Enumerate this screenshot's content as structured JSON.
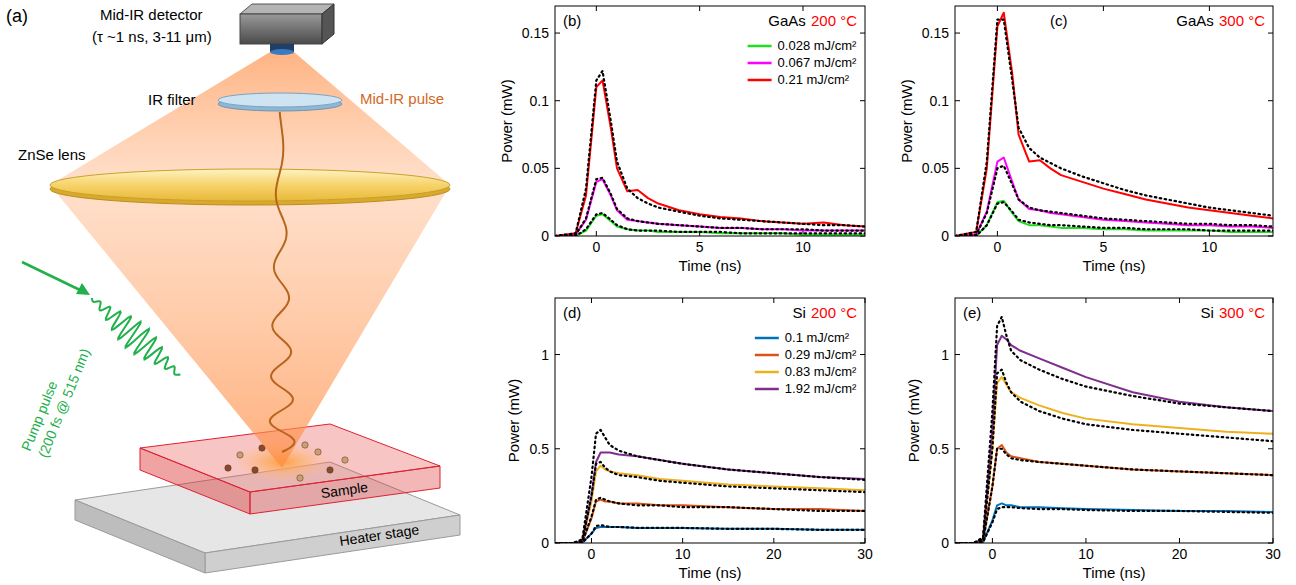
{
  "diagram": {
    "panel_label": "(a)",
    "detector": {
      "label": "Mid-IR detector",
      "spec": "(τ ~1 ns, 3-11 μm)"
    },
    "filter": {
      "label": "IR filter"
    },
    "beam": {
      "label": "Mid-IR pulse"
    },
    "lens": {
      "label": "ZnSe lens"
    },
    "pump": {
      "label": "Pump pulse",
      "spec": "(200 fs @ 515 nm)"
    },
    "sample": {
      "label": "Sample"
    },
    "stage": {
      "label": "Heater stage"
    }
  },
  "chart_data": [
    {
      "type": "line",
      "panel_label": "(b)",
      "title": "GaAs",
      "subtitle": "200 °C",
      "xlabel": "Time (ns)",
      "ylabel": "Power (mW)",
      "xlim": [
        -2,
        13
      ],
      "xticks": [
        0,
        5,
        10
      ],
      "ylim": [
        0,
        0.17
      ],
      "yticks": [
        0,
        0.05,
        0.1,
        0.15
      ],
      "legend": "upper right",
      "x": [
        -2,
        -1,
        -0.5,
        0,
        0.3,
        0.7,
        1,
        1.5,
        2,
        2.5,
        3,
        4,
        5,
        6,
        7,
        8,
        9,
        10,
        11,
        12,
        13
      ],
      "series": [
        {
          "name": "0.028 mJ/cm²",
          "color": "#1fe01f",
          "line_style": "solid",
          "values": [
            0,
            0,
            0.004,
            0.015,
            0.016,
            0.011,
            0.007,
            0.005,
            0.004,
            0.004,
            0.003,
            0.003,
            0.003,
            0.002,
            0.002,
            0.002,
            0.002,
            0.001,
            0.001,
            0.001,
            0.001
          ]
        },
        {
          "name": "0.067 mJ/cm²",
          "color": "#ff00ff",
          "line_style": "solid",
          "values": [
            0,
            0.001,
            0.012,
            0.04,
            0.042,
            0.03,
            0.019,
            0.012,
            0.011,
            0.01,
            0.009,
            0.008,
            0.007,
            0.006,
            0.006,
            0.005,
            0.005,
            0.004,
            0.004,
            0.004,
            0.004
          ]
        },
        {
          "name": "0.21 mJ/cm²",
          "color": "#ff0000",
          "line_style": "solid",
          "values": [
            0,
            0.002,
            0.03,
            0.11,
            0.115,
            0.08,
            0.05,
            0.033,
            0.034,
            0.028,
            0.024,
            0.019,
            0.016,
            0.014,
            0.013,
            0.011,
            0.01,
            0.009,
            0.01,
            0.008,
            0.007
          ]
        },
        {
          "color": "#000000",
          "line_style": "dotted",
          "values": [
            0,
            0,
            0.005,
            0.016,
            0.017,
            0.012,
            0.008,
            0.005,
            0.004,
            0.004,
            0.004,
            0.003,
            0.003,
            0.003,
            0.002,
            0.002,
            0.002,
            0.002,
            0.002,
            0.002,
            0.002
          ]
        },
        {
          "color": "#000000",
          "line_style": "dotted",
          "values": [
            0,
            0.001,
            0.013,
            0.042,
            0.043,
            0.031,
            0.02,
            0.013,
            0.011,
            0.01,
            0.009,
            0.008,
            0.007,
            0.006,
            0.006,
            0.005,
            0.005,
            0.005,
            0.004,
            0.004,
            0.004
          ]
        },
        {
          "color": "#000000",
          "line_style": "dotted",
          "values": [
            0,
            0.002,
            0.035,
            0.115,
            0.122,
            0.085,
            0.055,
            0.035,
            0.028,
            0.024,
            0.021,
            0.018,
            0.015,
            0.013,
            0.012,
            0.011,
            0.01,
            0.009,
            0.008,
            0.008,
            0.007
          ]
        }
      ]
    },
    {
      "type": "line",
      "panel_label": "(c)",
      "title": "GaAs",
      "subtitle": "300 °C",
      "xlabel": "Time (ns)",
      "ylabel": "Power (mW)",
      "xlim": [
        -2,
        13
      ],
      "xticks": [
        0,
        5,
        10
      ],
      "ylim": [
        0,
        0.17
      ],
      "yticks": [
        0,
        0.05,
        0.1,
        0.15
      ],
      "x": [
        -2,
        -1,
        -0.5,
        0,
        0.3,
        0.7,
        1,
        1.5,
        2,
        2.5,
        3,
        4,
        5,
        6,
        7,
        8,
        9,
        10,
        11,
        12,
        13
      ],
      "series": [
        {
          "color": "#1fe01f",
          "line_style": "solid",
          "values": [
            0,
            0,
            0.008,
            0.025,
            0.026,
            0.017,
            0.011,
            0.008,
            0.008,
            0.007,
            0.006,
            0.006,
            0.005,
            0.005,
            0.004,
            0.004,
            0.004,
            0.004,
            0.003,
            0.003,
            0.003
          ]
        },
        {
          "color": "#ff00ff",
          "line_style": "solid",
          "values": [
            0,
            0.001,
            0.018,
            0.055,
            0.058,
            0.04,
            0.027,
            0.02,
            0.019,
            0.017,
            0.016,
            0.014,
            0.012,
            0.011,
            0.01,
            0.009,
            0.008,
            0.008,
            0.007,
            0.007,
            0.006
          ]
        },
        {
          "color": "#ff0000",
          "line_style": "solid",
          "values": [
            0,
            0.003,
            0.05,
            0.155,
            0.165,
            0.12,
            0.075,
            0.055,
            0.056,
            0.05,
            0.045,
            0.04,
            0.035,
            0.031,
            0.027,
            0.024,
            0.021,
            0.019,
            0.017,
            0.015,
            0.013
          ]
        },
        {
          "color": "#000000",
          "line_style": "dotted",
          "values": [
            0,
            0,
            0.008,
            0.024,
            0.025,
            0.018,
            0.012,
            0.01,
            0.009,
            0.008,
            0.008,
            0.007,
            0.006,
            0.006,
            0.005,
            0.005,
            0.005,
            0.004,
            0.004,
            0.004,
            0.004
          ]
        },
        {
          "color": "#000000",
          "line_style": "dotted",
          "values": [
            0,
            0.001,
            0.017,
            0.05,
            0.052,
            0.038,
            0.027,
            0.021,
            0.019,
            0.018,
            0.017,
            0.015,
            0.013,
            0.012,
            0.011,
            0.01,
            0.009,
            0.009,
            0.008,
            0.008,
            0.007
          ]
        },
        {
          "color": "#000000",
          "line_style": "dotted",
          "values": [
            0,
            0.003,
            0.055,
            0.16,
            0.16,
            0.115,
            0.08,
            0.065,
            0.058,
            0.054,
            0.05,
            0.044,
            0.039,
            0.034,
            0.03,
            0.027,
            0.024,
            0.021,
            0.019,
            0.017,
            0.015
          ]
        }
      ]
    },
    {
      "type": "line",
      "panel_label": "(d)",
      "title": "Si",
      "subtitle": "200 °C",
      "xlabel": "Time (ns)",
      "ylabel": "Power (mW)",
      "xlim": [
        -4,
        30
      ],
      "xticks": [
        0,
        10,
        20,
        30
      ],
      "ylim": [
        0,
        1.3
      ],
      "yticks": [
        0,
        0.5,
        1
      ],
      "legend": "upper right",
      "x": [
        -4,
        -2,
        -1,
        0,
        0.5,
        1,
        1.5,
        2,
        3,
        5,
        7.5,
        10,
        15,
        20,
        25,
        30
      ],
      "series": [
        {
          "name": "0.1 mJ/cm²",
          "color": "#0072bd",
          "line_style": "solid",
          "values": [
            0,
            0,
            0.002,
            0.05,
            0.08,
            0.085,
            0.085,
            0.085,
            0.085,
            0.08,
            0.08,
            0.08,
            0.075,
            0.075,
            0.07,
            0.07
          ]
        },
        {
          "name": "0.29 mJ/cm²",
          "color": "#d95319",
          "line_style": "solid",
          "values": [
            0,
            0,
            0.005,
            0.13,
            0.22,
            0.23,
            0.22,
            0.22,
            0.21,
            0.21,
            0.2,
            0.2,
            0.19,
            0.18,
            0.18,
            0.17
          ]
        },
        {
          "name": "0.83 mJ/cm²",
          "color": "#edb120",
          "line_style": "solid",
          "values": [
            0,
            0,
            0.01,
            0.22,
            0.38,
            0.41,
            0.39,
            0.38,
            0.37,
            0.36,
            0.34,
            0.33,
            0.31,
            0.3,
            0.29,
            0.28
          ]
        },
        {
          "name": "1.92 mJ/cm²",
          "color": "#7e2f8e",
          "line_style": "solid",
          "values": [
            0,
            0,
            0.01,
            0.25,
            0.43,
            0.48,
            0.48,
            0.48,
            0.47,
            0.46,
            0.44,
            0.42,
            0.39,
            0.37,
            0.35,
            0.34
          ]
        },
        {
          "color": "#000000",
          "line_style": "dotted",
          "values": [
            0,
            0,
            0.002,
            0.05,
            0.09,
            0.095,
            0.09,
            0.085,
            0.085,
            0.08,
            0.08,
            0.08,
            0.075,
            0.075,
            0.07,
            0.07
          ]
        },
        {
          "color": "#000000",
          "line_style": "dotted",
          "values": [
            0,
            0,
            0.005,
            0.14,
            0.23,
            0.24,
            0.23,
            0.22,
            0.21,
            0.2,
            0.2,
            0.19,
            0.19,
            0.18,
            0.17,
            0.17
          ]
        },
        {
          "color": "#000000",
          "line_style": "dotted",
          "values": [
            0,
            0,
            0.01,
            0.25,
            0.42,
            0.43,
            0.4,
            0.38,
            0.36,
            0.35,
            0.33,
            0.32,
            0.3,
            0.29,
            0.28,
            0.27
          ]
        },
        {
          "color": "#000000",
          "line_style": "dotted",
          "values": [
            0,
            0,
            0.02,
            0.35,
            0.58,
            0.6,
            0.56,
            0.52,
            0.49,
            0.46,
            0.44,
            0.42,
            0.39,
            0.37,
            0.35,
            0.335
          ]
        }
      ]
    },
    {
      "type": "line",
      "panel_label": "(e)",
      "title": "Si",
      "subtitle": "300 °C",
      "xlabel": "Time (ns)",
      "ylabel": "Power (mW)",
      "xlim": [
        -4,
        30
      ],
      "xticks": [
        0,
        10,
        20,
        30
      ],
      "ylim": [
        0,
        1.3
      ],
      "yticks": [
        0,
        0.5,
        1
      ],
      "x": [
        -4,
        -2,
        -1,
        0,
        0.5,
        1,
        1.5,
        2,
        3,
        5,
        7.5,
        10,
        15,
        20,
        25,
        30
      ],
      "series": [
        {
          "color": "#0072bd",
          "line_style": "solid",
          "values": [
            0,
            0,
            0.005,
            0.12,
            0.2,
            0.21,
            0.2,
            0.2,
            0.19,
            0.19,
            0.185,
            0.18,
            0.175,
            0.17,
            0.17,
            0.165
          ]
        },
        {
          "color": "#d95319",
          "line_style": "solid",
          "values": [
            0,
            0,
            0.01,
            0.3,
            0.5,
            0.52,
            0.48,
            0.46,
            0.45,
            0.43,
            0.42,
            0.41,
            0.39,
            0.38,
            0.37,
            0.36
          ]
        },
        {
          "color": "#edb120",
          "line_style": "solid",
          "values": [
            0,
            0,
            0.02,
            0.5,
            0.85,
            0.88,
            0.84,
            0.8,
            0.77,
            0.73,
            0.69,
            0.66,
            0.63,
            0.61,
            0.59,
            0.58
          ]
        },
        {
          "color": "#7e2f8e",
          "line_style": "solid",
          "values": [
            0,
            0,
            0.02,
            0.6,
            1.05,
            1.1,
            1.08,
            1.05,
            1.02,
            0.98,
            0.93,
            0.88,
            0.8,
            0.75,
            0.72,
            0.7
          ]
        },
        {
          "color": "#000000",
          "line_style": "dotted",
          "values": [
            0,
            0,
            0.005,
            0.11,
            0.18,
            0.19,
            0.19,
            0.19,
            0.185,
            0.18,
            0.18,
            0.175,
            0.17,
            0.17,
            0.165,
            0.16
          ]
        },
        {
          "color": "#000000",
          "line_style": "dotted",
          "values": [
            0,
            0,
            0.01,
            0.3,
            0.5,
            0.5,
            0.47,
            0.45,
            0.44,
            0.43,
            0.42,
            0.41,
            0.39,
            0.38,
            0.37,
            0.36
          ]
        },
        {
          "color": "#000000",
          "line_style": "dotted",
          "values": [
            0,
            0,
            0.02,
            0.5,
            0.9,
            0.92,
            0.85,
            0.8,
            0.75,
            0.7,
            0.66,
            0.63,
            0.6,
            0.58,
            0.56,
            0.54
          ]
        },
        {
          "color": "#000000",
          "line_style": "dotted",
          "values": [
            0,
            0,
            0.03,
            0.7,
            1.15,
            1.2,
            1.1,
            1.02,
            0.97,
            0.92,
            0.87,
            0.83,
            0.78,
            0.74,
            0.72,
            0.7
          ]
        }
      ]
    }
  ]
}
